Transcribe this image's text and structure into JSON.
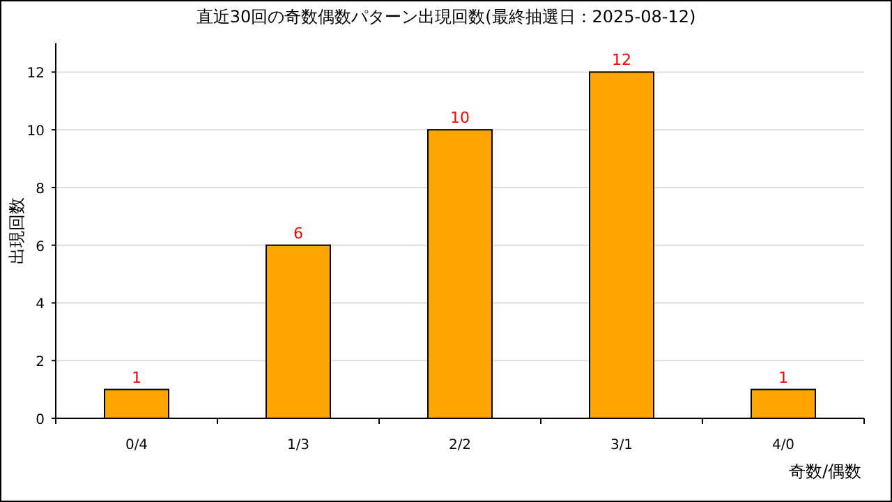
{
  "chart_data": {
    "type": "bar",
    "title": "直近30回の奇数偶数パターン出現回数(最終抽選日：2025-08-12)",
    "xlabel": "奇数/偶数",
    "ylabel": "出現回数",
    "categories": [
      "0/4",
      "1/3",
      "2/2",
      "3/1",
      "4/0"
    ],
    "values": [
      1,
      6,
      10,
      12,
      1
    ],
    "color": "#ffa500",
    "ylim": [
      0,
      13
    ],
    "yticks": [
      0,
      2,
      4,
      6,
      8,
      10,
      12
    ],
    "grid": "y",
    "data_labels": true
  }
}
